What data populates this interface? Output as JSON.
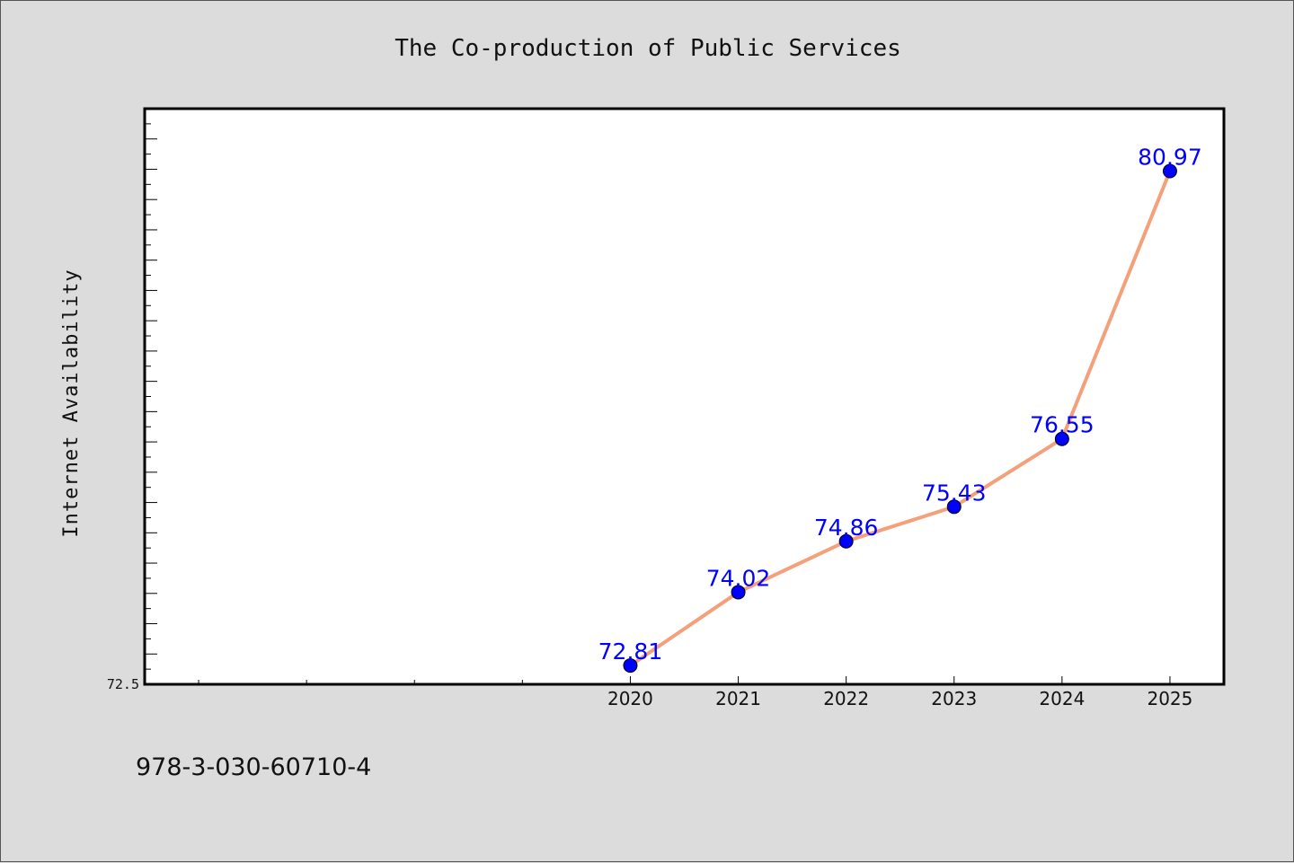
{
  "chart_data": {
    "type": "line",
    "title": "The Co-production of Public Services",
    "xlabel": "",
    "ylabel": "Internet Availability",
    "x_ticks": [
      "2020",
      "2021",
      "2022",
      "2023",
      "2024",
      "2025"
    ],
    "y_ticks": [
      "72.5"
    ],
    "xlim": [
      2015.5,
      2025.5
    ],
    "ylim": [
      72.5,
      82.0
    ],
    "series": [
      {
        "x": [
          2020,
          2021,
          2022,
          2023,
          2024,
          2025
        ],
        "values": [
          72.81,
          74.02,
          74.86,
          75.43,
          76.55,
          80.97
        ],
        "labels": [
          "72.81",
          "74.02",
          "74.86",
          "75.43",
          "76.55",
          "80.97"
        ]
      }
    ],
    "grid": false,
    "colors": {
      "line": "#f4a07a",
      "marker": "#0000ff",
      "label": "#0000ff",
      "plot_background": "#ffffff",
      "page_background": "#dcdcdc"
    }
  },
  "footer": {
    "isbn": "978-3-030-60710-4"
  }
}
